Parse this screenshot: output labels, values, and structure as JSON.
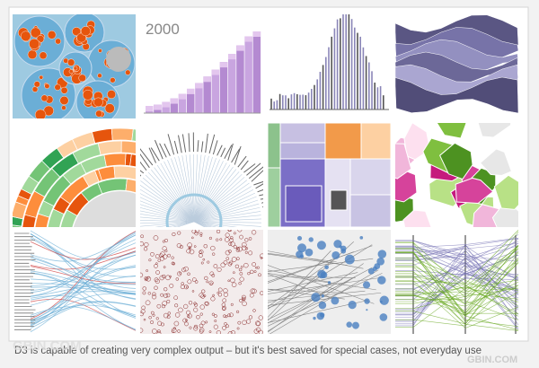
{
  "thumbnail_label": "2000",
  "caption": "D3 is capable of creating very complex output – but it's best saved for special cases, not everyday use",
  "watermarks": [
    "GBIN.COM",
    "GBIN.COM"
  ]
}
